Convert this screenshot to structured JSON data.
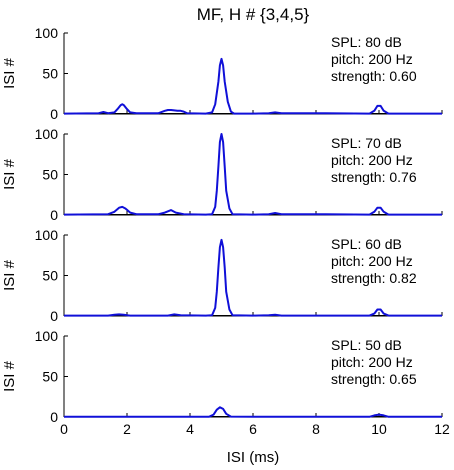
{
  "chart_data": {
    "type": "line",
    "title": "MF, H # {3,4,5}",
    "xlabel": "ISI (ms)",
    "ylabel": "ISI #",
    "xlim": [
      0,
      12
    ],
    "ylim": [
      0,
      100
    ],
    "xticks": [
      0,
      2,
      4,
      6,
      8,
      10,
      12
    ],
    "yticks": [
      0,
      50,
      100
    ],
    "line_color": "#1010d8",
    "baseline_color": "#000000",
    "panels": [
      {
        "annotation": [
          "SPL: 80 dB",
          "pitch: 200 Hz",
          "strength: 0.60"
        ],
        "points": [
          [
            0,
            0.5
          ],
          [
            1.1,
            1
          ],
          [
            1.25,
            2.5
          ],
          [
            1.4,
            1
          ],
          [
            1.6,
            2
          ],
          [
            1.7,
            6
          ],
          [
            1.8,
            11
          ],
          [
            1.85,
            12
          ],
          [
            1.9,
            11
          ],
          [
            2.0,
            6
          ],
          [
            2.1,
            2
          ],
          [
            2.3,
            1
          ],
          [
            3.0,
            1
          ],
          [
            3.2,
            4
          ],
          [
            3.3,
            5
          ],
          [
            3.4,
            5
          ],
          [
            3.5,
            4.5
          ],
          [
            3.6,
            4
          ],
          [
            3.7,
            4
          ],
          [
            3.8,
            3
          ],
          [
            3.9,
            1
          ],
          [
            4.5,
            0.5
          ],
          [
            4.7,
            2
          ],
          [
            4.8,
            12
          ],
          [
            4.9,
            40
          ],
          [
            4.95,
            60
          ],
          [
            5.0,
            68
          ],
          [
            5.05,
            60
          ],
          [
            5.1,
            40
          ],
          [
            5.2,
            15
          ],
          [
            5.3,
            3
          ],
          [
            5.4,
            0.5
          ],
          [
            6.0,
            0.5
          ],
          [
            6.5,
            1
          ],
          [
            6.7,
            2
          ],
          [
            6.9,
            1
          ],
          [
            8.3,
            1
          ],
          [
            9.7,
            0.5
          ],
          [
            9.85,
            4
          ],
          [
            9.95,
            10
          ],
          [
            10.05,
            10
          ],
          [
            10.15,
            4
          ],
          [
            10.3,
            0.5
          ],
          [
            11.5,
            0.5
          ],
          [
            12,
            0.5
          ]
        ]
      },
      {
        "annotation": [
          "SPL: 70 dB",
          "pitch: 200 Hz",
          "strength: 0.76"
        ],
        "points": [
          [
            0,
            0.5
          ],
          [
            1.4,
            1
          ],
          [
            1.6,
            4
          ],
          [
            1.75,
            9
          ],
          [
            1.85,
            10
          ],
          [
            1.95,
            8
          ],
          [
            2.1,
            3
          ],
          [
            2.3,
            1
          ],
          [
            3.0,
            1
          ],
          [
            3.2,
            3
          ],
          [
            3.4,
            6
          ],
          [
            3.55,
            3
          ],
          [
            3.8,
            1
          ],
          [
            4.5,
            0.5
          ],
          [
            4.7,
            1
          ],
          [
            4.8,
            10
          ],
          [
            4.85,
            30
          ],
          [
            4.9,
            60
          ],
          [
            4.95,
            90
          ],
          [
            5.0,
            100
          ],
          [
            5.05,
            90
          ],
          [
            5.1,
            60
          ],
          [
            5.15,
            30
          ],
          [
            5.25,
            8
          ],
          [
            5.35,
            1
          ],
          [
            6.0,
            0.5
          ],
          [
            6.5,
            1
          ],
          [
            6.7,
            2.5
          ],
          [
            6.9,
            1
          ],
          [
            8.3,
            1
          ],
          [
            9.7,
            0.5
          ],
          [
            9.85,
            4
          ],
          [
            9.95,
            9
          ],
          [
            10.05,
            9
          ],
          [
            10.15,
            4
          ],
          [
            10.3,
            0.5
          ],
          [
            12,
            0.5
          ]
        ]
      },
      {
        "annotation": [
          "SPL: 60 dB",
          "pitch: 200 Hz",
          "strength: 0.82"
        ],
        "points": [
          [
            0,
            0.5
          ],
          [
            1.4,
            0.5
          ],
          [
            1.6,
            1.5
          ],
          [
            1.75,
            2
          ],
          [
            1.9,
            1.5
          ],
          [
            2.1,
            0.5
          ],
          [
            3.3,
            0.5
          ],
          [
            3.5,
            2
          ],
          [
            3.7,
            1
          ],
          [
            4.5,
            0.5
          ],
          [
            4.7,
            1
          ],
          [
            4.8,
            10
          ],
          [
            4.85,
            30
          ],
          [
            4.9,
            60
          ],
          [
            4.95,
            85
          ],
          [
            5.0,
            94
          ],
          [
            5.05,
            85
          ],
          [
            5.1,
            60
          ],
          [
            5.15,
            30
          ],
          [
            5.25,
            8
          ],
          [
            5.35,
            1
          ],
          [
            6.0,
            0.5
          ],
          [
            6.5,
            1
          ],
          [
            6.7,
            1.5
          ],
          [
            6.9,
            0.5
          ],
          [
            9.7,
            0.5
          ],
          [
            9.85,
            3
          ],
          [
            9.95,
            8
          ],
          [
            10.05,
            8
          ],
          [
            10.15,
            3
          ],
          [
            10.3,
            0.5
          ],
          [
            12,
            0.5
          ]
        ]
      },
      {
        "annotation": [
          "SPL: 50 dB",
          "pitch: 200 Hz",
          "strength: 0.65"
        ],
        "points": [
          [
            0,
            0.3
          ],
          [
            4.6,
            0.3
          ],
          [
            4.75,
            3
          ],
          [
            4.85,
            9
          ],
          [
            4.95,
            12
          ],
          [
            5.05,
            10
          ],
          [
            5.15,
            4
          ],
          [
            5.3,
            0.5
          ],
          [
            6.5,
            0.3
          ],
          [
            9.7,
            0.3
          ],
          [
            9.85,
            2
          ],
          [
            10.0,
            3
          ],
          [
            10.15,
            2
          ],
          [
            10.3,
            0.3
          ],
          [
            12,
            0.3
          ]
        ]
      }
    ]
  }
}
